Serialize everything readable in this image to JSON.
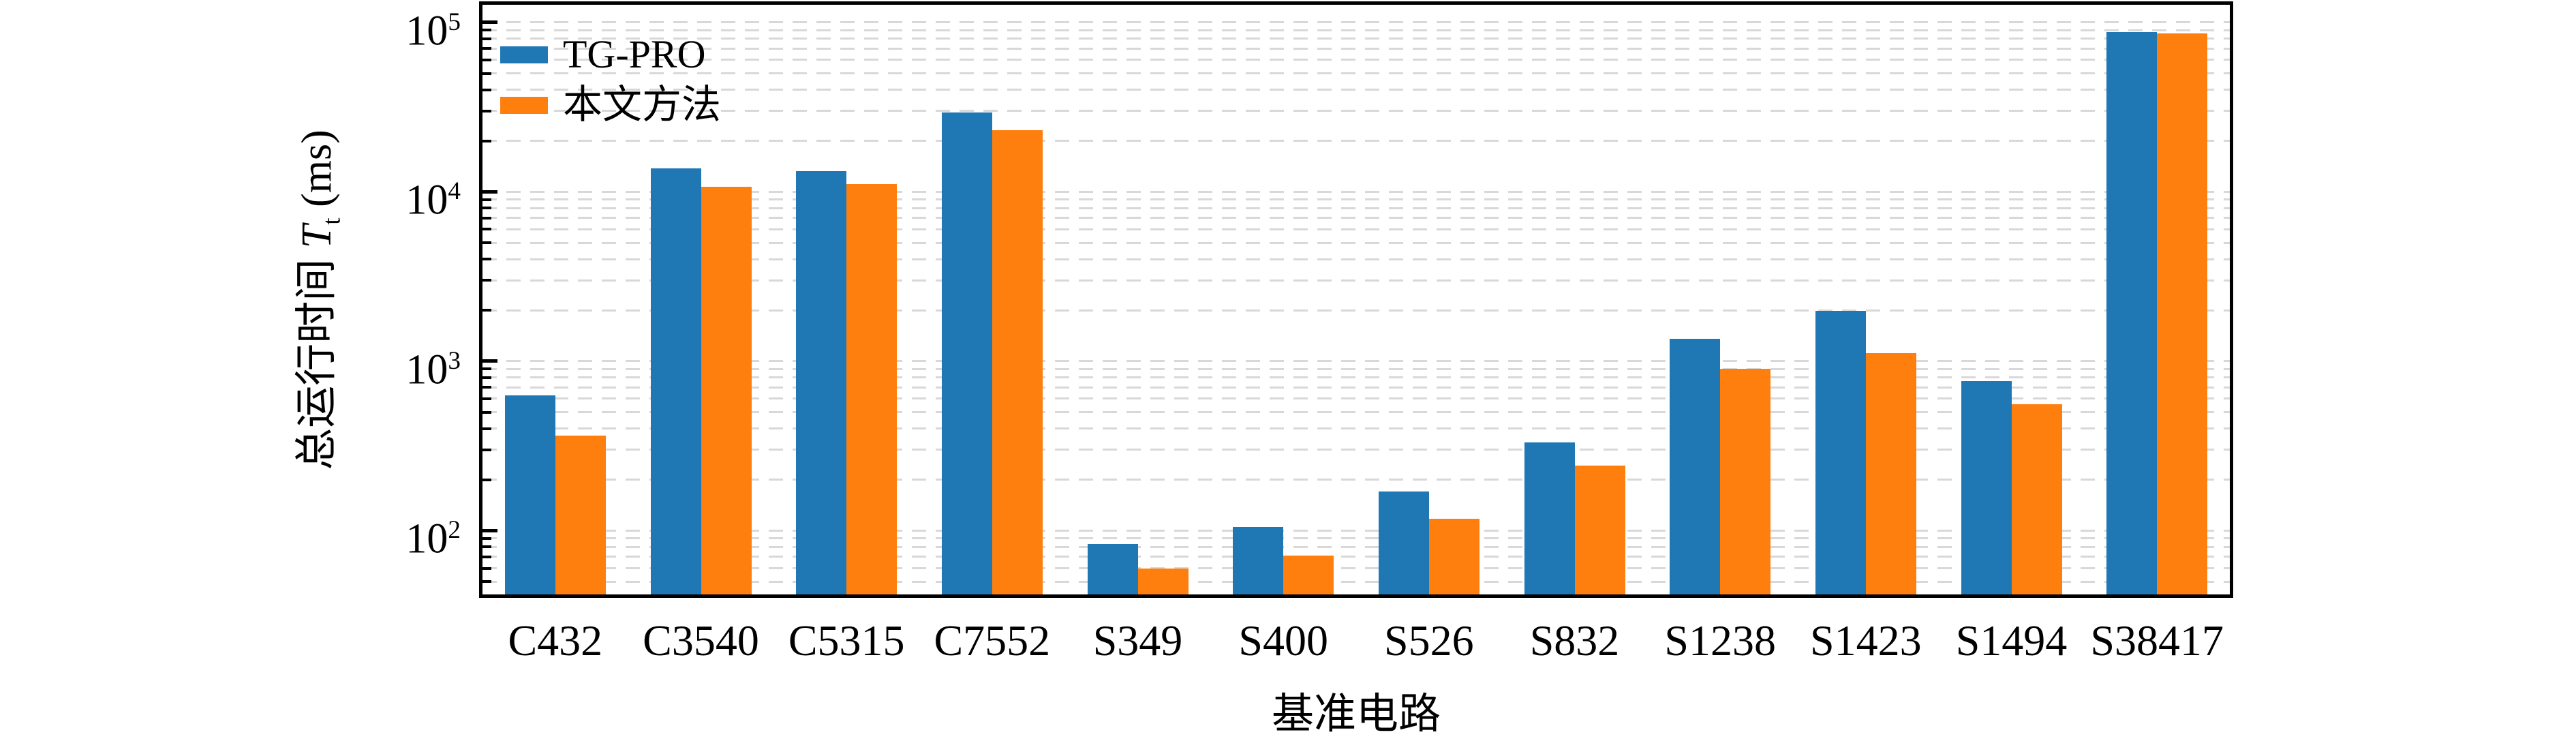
{
  "figure": {
    "background": "#ffffff",
    "text_color": "#000000"
  },
  "chart_data": {
    "type": "bar",
    "title": "",
    "xlabel": "基准电路",
    "ylabel": {
      "prefix": "总运行时间 ",
      "variable": "T",
      "subscript": "t",
      "suffix": " (ms)"
    },
    "y_scale": "log",
    "y_unit": "ms",
    "ylim": [
      42,
      127000
    ],
    "y_tick_base": "10",
    "y_tick_exponents": [
      2,
      3,
      4,
      5
    ],
    "grid": {
      "which": "major+minor",
      "style": "dashed",
      "color": "#d8d8d8"
    },
    "legend_position": "upper-left",
    "categories": [
      "C432",
      "C3540",
      "C5315",
      "C7552",
      "S349",
      "S400",
      "S526",
      "S832",
      "S1238",
      "S1423",
      "S1494",
      "S38417"
    ],
    "series": [
      {
        "name": "TG-PRO",
        "color": "#1f77b4",
        "values": [
          630,
          13800,
          13200,
          29500,
          83,
          105,
          170,
          332,
          1350,
          1990,
          760,
          88000
        ]
      },
      {
        "name": "本文方法",
        "color": "#ff7f0e",
        "values": [
          365,
          10700,
          11100,
          23000,
          60,
          71,
          118,
          242,
          900,
          1120,
          557,
          86000
        ]
      }
    ]
  }
}
